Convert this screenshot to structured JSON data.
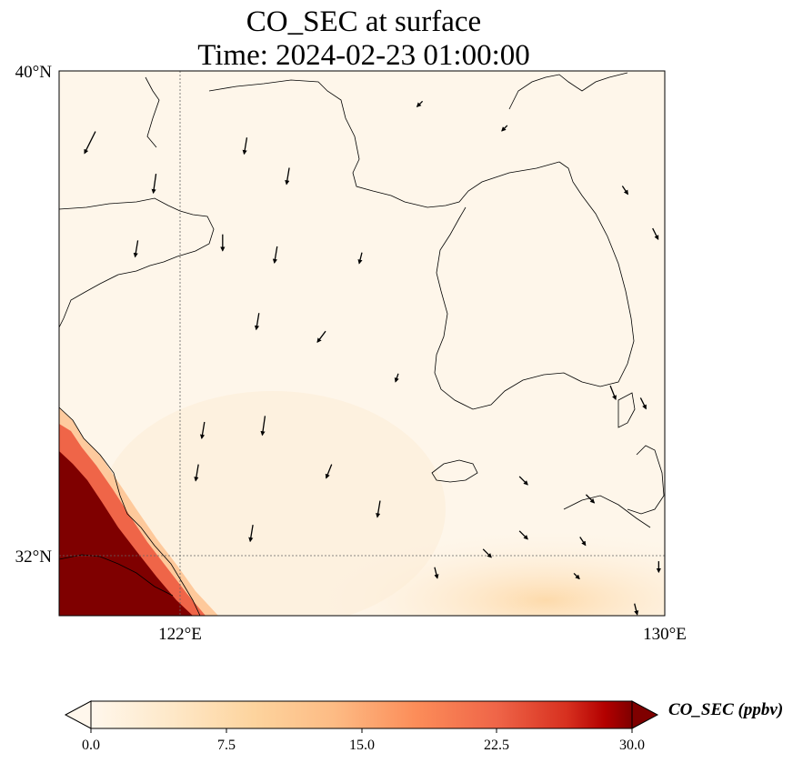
{
  "chart_data": {
    "type": "heatmap",
    "title": "CO_SEC at surface",
    "subtitle": "Time: 2024-02-23 01:00:00",
    "map_extent": {
      "lon": [
        120,
        130
      ],
      "lat": [
        31,
        40
      ]
    },
    "x_ticks": [
      {
        "value": 122,
        "label": "122°E"
      },
      {
        "value": 130,
        "label": "130°E"
      }
    ],
    "y_ticks": [
      {
        "value": 40,
        "label": "40°N"
      },
      {
        "value": 32,
        "label": "32°N"
      }
    ],
    "gridlines": {
      "lon": [
        122
      ],
      "lat": [
        32
      ],
      "style": "dotted"
    },
    "colorbar": {
      "label": "CO_SEC (ppbv)",
      "colormap": "OrRd",
      "range": [
        0,
        30
      ],
      "extend": "both",
      "ticks": [
        "0.0",
        "7.5",
        "15.0",
        "22.5",
        "30.0"
      ]
    },
    "high_concentration_region": "southwest corner (Shanghai / Yangtze delta), values ≥ 30 ppbv",
    "background_level": "≈ 0–2 ppbv over Yellow Sea and Korea",
    "wind_vectors": [
      {
        "lon": 120.6,
        "lat": 39.0,
        "u": -0.4,
        "v": -0.8
      },
      {
        "lon": 121.6,
        "lat": 38.3,
        "u": -0.1,
        "v": -0.7
      },
      {
        "lon": 123.1,
        "lat": 38.9,
        "u": -0.1,
        "v": -0.6
      },
      {
        "lon": 123.8,
        "lat": 38.4,
        "u": -0.1,
        "v": -0.6
      },
      {
        "lon": 121.3,
        "lat": 37.2,
        "u": -0.1,
        "v": -0.6
      },
      {
        "lon": 122.7,
        "lat": 37.3,
        "u": 0.0,
        "v": -0.6
      },
      {
        "lon": 123.6,
        "lat": 37.1,
        "u": -0.1,
        "v": -0.6
      },
      {
        "lon": 125.0,
        "lat": 37.0,
        "u": -0.1,
        "v": -0.4
      },
      {
        "lon": 123.3,
        "lat": 36.0,
        "u": -0.1,
        "v": -0.6
      },
      {
        "lon": 124.4,
        "lat": 35.7,
        "u": -0.3,
        "v": -0.4
      },
      {
        "lon": 125.6,
        "lat": 35.0,
        "u": -0.1,
        "v": -0.3
      },
      {
        "lon": 122.4,
        "lat": 34.2,
        "u": -0.1,
        "v": -0.6
      },
      {
        "lon": 123.4,
        "lat": 34.3,
        "u": -0.1,
        "v": -0.7
      },
      {
        "lon": 124.5,
        "lat": 33.5,
        "u": -0.2,
        "v": -0.5
      },
      {
        "lon": 125.3,
        "lat": 32.9,
        "u": -0.1,
        "v": -0.6
      },
      {
        "lon": 122.3,
        "lat": 33.5,
        "u": -0.1,
        "v": -0.6
      },
      {
        "lon": 123.2,
        "lat": 32.5,
        "u": -0.1,
        "v": -0.6
      },
      {
        "lon": 126.2,
        "lat": 31.8,
        "u": 0.1,
        "v": -0.4
      },
      {
        "lon": 127.0,
        "lat": 32.1,
        "u": 0.3,
        "v": -0.3
      },
      {
        "lon": 127.6,
        "lat": 32.4,
        "u": 0.3,
        "v": -0.3
      },
      {
        "lon": 128.5,
        "lat": 31.7,
        "u": 0.2,
        "v": -0.2
      },
      {
        "lon": 128.6,
        "lat": 32.3,
        "u": 0.2,
        "v": -0.3
      },
      {
        "lon": 127.6,
        "lat": 33.3,
        "u": 0.3,
        "v": -0.3
      },
      {
        "lon": 128.7,
        "lat": 33.0,
        "u": 0.3,
        "v": -0.3
      },
      {
        "lon": 129.6,
        "lat": 34.6,
        "u": 0.2,
        "v": -0.4
      },
      {
        "lon": 129.1,
        "lat": 34.8,
        "u": 0.2,
        "v": -0.5
      },
      {
        "lon": 129.5,
        "lat": 31.2,
        "u": 0.1,
        "v": -0.4
      },
      {
        "lon": 129.9,
        "lat": 31.9,
        "u": 0.0,
        "v": -0.4
      },
      {
        "lon": 129.8,
        "lat": 37.4,
        "u": 0.2,
        "v": -0.4
      },
      {
        "lon": 129.3,
        "lat": 38.1,
        "u": 0.2,
        "v": -0.3
      },
      {
        "lon": 126.0,
        "lat": 39.5,
        "u": -0.2,
        "v": -0.2
      },
      {
        "lon": 127.4,
        "lat": 39.1,
        "u": -0.2,
        "v": -0.2
      }
    ]
  }
}
